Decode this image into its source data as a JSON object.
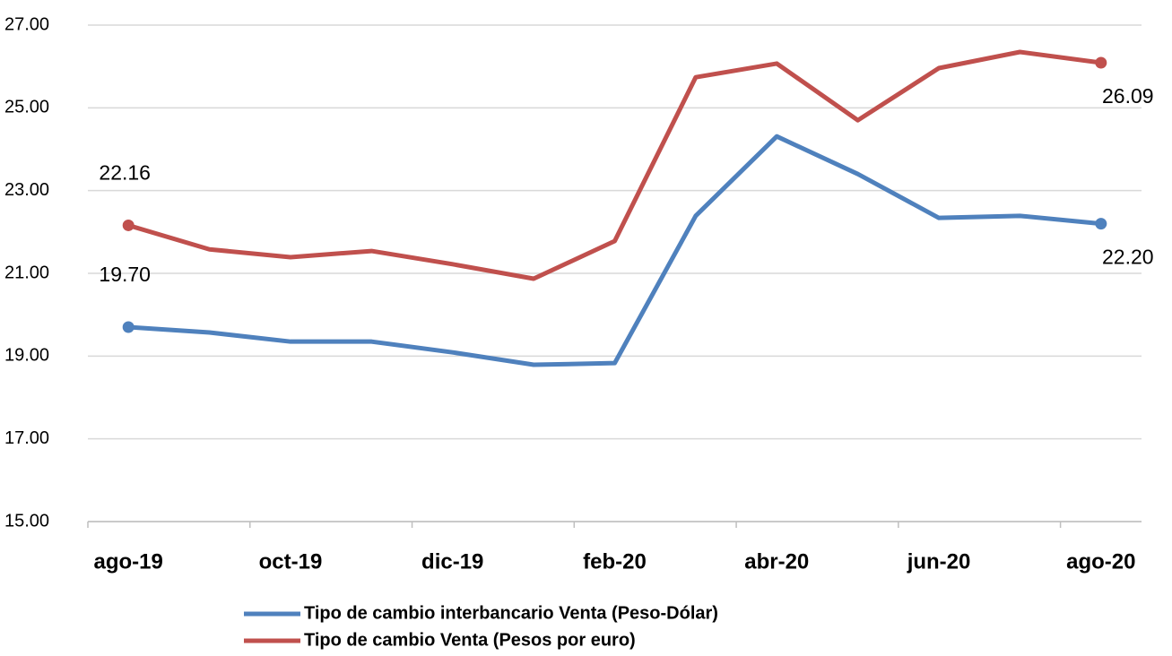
{
  "chart_data": {
    "type": "line",
    "categories": [
      "ago-19",
      null,
      "oct-19",
      null,
      "dic-19",
      null,
      "feb-20",
      null,
      "abr-20",
      null,
      "jun-20",
      null,
      "ago-20"
    ],
    "series": [
      {
        "name": "Tipo de cambio interbancario Venta (Peso-Dólar)",
        "color": "#4f81bd",
        "values": [
          19.7,
          19.57,
          19.35,
          19.35,
          19.09,
          18.79,
          18.83,
          22.39,
          24.31,
          23.4,
          22.34,
          22.39,
          22.2
        ],
        "value_labels": [
          "19.70",
          null,
          null,
          null,
          null,
          null,
          null,
          null,
          null,
          null,
          null,
          null,
          "22.20"
        ]
      },
      {
        "name": "Tipo de cambio Venta (Pesos por euro)",
        "color": "#c0504d",
        "values": [
          22.16,
          21.58,
          21.39,
          21.54,
          21.22,
          20.87,
          21.78,
          25.74,
          26.07,
          24.7,
          25.96,
          26.35,
          26.09
        ],
        "value_labels": [
          "22.16",
          null,
          null,
          null,
          null,
          null,
          null,
          null,
          null,
          null,
          null,
          null,
          "26.09"
        ]
      }
    ],
    "ylim": [
      15,
      27
    ],
    "yticks": [
      {
        "value": 15,
        "label": "15.00"
      },
      {
        "value": 17,
        "label": "17.00"
      },
      {
        "value": 19,
        "label": "19.00"
      },
      {
        "value": 21,
        "label": "21.00"
      },
      {
        "value": 23,
        "label": "23.00"
      },
      {
        "value": 25,
        "label": "25.00"
      },
      {
        "value": 27,
        "label": "27.00"
      }
    ],
    "grid": true
  }
}
